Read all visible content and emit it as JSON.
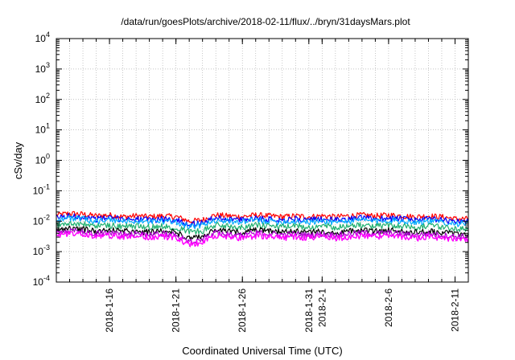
{
  "chart_data": {
    "type": "line",
    "title": "/data/run/goesPlots/archive/2018-02-11/flux/../bryn/31daysMars.plot",
    "xlabel": "Coordinated Universal Time (UTC)",
    "ylabel": "cSv/day",
    "y_scale": "log",
    "ylim": [
      0.0001,
      10000
    ],
    "y_ticks": [
      {
        "base": "10",
        "exp": "-4",
        "value": 0.0001
      },
      {
        "base": "10",
        "exp": "-3",
        "value": 0.001
      },
      {
        "base": "10",
        "exp": "-2",
        "value": 0.01
      },
      {
        "base": "10",
        "exp": "-1",
        "value": 0.1
      },
      {
        "base": "10",
        "exp": "0",
        "value": 1
      },
      {
        "base": "10",
        "exp": "1",
        "value": 10
      },
      {
        "base": "10",
        "exp": "2",
        "value": 100
      },
      {
        "base": "10",
        "exp": "3",
        "value": 1000
      },
      {
        "base": "10",
        "exp": "4",
        "value": 10000
      }
    ],
    "xlim": [
      "2018-01-12",
      "2018-02-12"
    ],
    "x_ticks": [
      {
        "date": "2018-01-16",
        "label": "2018-1-16"
      },
      {
        "date": "2018-01-21",
        "label": "2018-1-21"
      },
      {
        "date": "2018-01-26",
        "label": "2018-1-26"
      },
      {
        "date": "2018-01-31",
        "label": "2018-1-31"
      },
      {
        "date": "2018-02-01",
        "label": "2018-2-1"
      },
      {
        "date": "2018-02-06",
        "label": "2018-2-6"
      },
      {
        "date": "2018-02-11",
        "label": "2018-2-11"
      }
    ],
    "grid": true,
    "x": [
      "2018-01-12",
      "2018-01-13",
      "2018-01-14",
      "2018-01-15",
      "2018-01-16",
      "2018-01-17",
      "2018-01-18",
      "2018-01-19",
      "2018-01-20",
      "2018-01-21",
      "2018-01-22",
      "2018-01-23",
      "2018-01-24",
      "2018-01-25",
      "2018-01-26",
      "2018-01-27",
      "2018-01-28",
      "2018-01-29",
      "2018-01-30",
      "2018-01-31",
      "2018-02-01",
      "2018-02-02",
      "2018-02-03",
      "2018-02-04",
      "2018-02-05",
      "2018-02-06",
      "2018-02-07",
      "2018-02-08",
      "2018-02-09",
      "2018-02-10",
      "2018-02-11",
      "2018-02-12"
    ],
    "series": [
      {
        "color": "#ff0000",
        "values": [
          0.016,
          0.018,
          0.017,
          0.015,
          0.016,
          0.014,
          0.015,
          0.014,
          0.015,
          0.014,
          0.01,
          0.011,
          0.016,
          0.015,
          0.014,
          0.016,
          0.015,
          0.014,
          0.015,
          0.014,
          0.015,
          0.014,
          0.015,
          0.016,
          0.015,
          0.016,
          0.015,
          0.014,
          0.015,
          0.014,
          0.012,
          0.012
        ]
      },
      {
        "color": "#0000ff",
        "values": [
          0.013,
          0.015,
          0.014,
          0.012,
          0.013,
          0.012,
          0.012,
          0.011,
          0.012,
          0.011,
          0.008,
          0.009,
          0.013,
          0.012,
          0.011,
          0.013,
          0.012,
          0.011,
          0.012,
          0.011,
          0.012,
          0.011,
          0.012,
          0.013,
          0.012,
          0.013,
          0.012,
          0.011,
          0.012,
          0.011,
          0.01,
          0.01
        ]
      },
      {
        "color": "#00aaff",
        "values": [
          0.011,
          0.013,
          0.012,
          0.01,
          0.011,
          0.01,
          0.01,
          0.0095,
          0.01,
          0.0095,
          0.0068,
          0.0075,
          0.011,
          0.01,
          0.0095,
          0.011,
          0.01,
          0.0095,
          0.01,
          0.0095,
          0.01,
          0.0095,
          0.01,
          0.011,
          0.01,
          0.011,
          0.01,
          0.0095,
          0.01,
          0.0095,
          0.0085,
          0.0085
        ]
      },
      {
        "color": "#20b070",
        "values": [
          0.0075,
          0.0085,
          0.008,
          0.007,
          0.0075,
          0.0068,
          0.007,
          0.0065,
          0.007,
          0.0065,
          0.0045,
          0.005,
          0.0075,
          0.007,
          0.0065,
          0.0075,
          0.007,
          0.0065,
          0.007,
          0.0065,
          0.007,
          0.0065,
          0.007,
          0.0075,
          0.007,
          0.0075,
          0.007,
          0.0065,
          0.007,
          0.0065,
          0.0058,
          0.0058
        ]
      },
      {
        "color": "#000000",
        "values": [
          0.005,
          0.006,
          0.0055,
          0.0048,
          0.0052,
          0.0047,
          0.0049,
          0.0044,
          0.0048,
          0.0044,
          0.0027,
          0.0032,
          0.0051,
          0.0047,
          0.0043,
          0.0051,
          0.0048,
          0.0044,
          0.0047,
          0.0043,
          0.0047,
          0.0043,
          0.0047,
          0.0051,
          0.0048,
          0.0051,
          0.0047,
          0.0043,
          0.0047,
          0.0043,
          0.0039,
          0.0039
        ]
      },
      {
        "color": "#aa00cc",
        "values": [
          0.0042,
          0.005,
          0.0046,
          0.004,
          0.0043,
          0.0039,
          0.0041,
          0.0036,
          0.004,
          0.0036,
          0.0022,
          0.0026,
          0.0042,
          0.0039,
          0.0035,
          0.0042,
          0.004,
          0.0036,
          0.0039,
          0.0035,
          0.0039,
          0.0035,
          0.0039,
          0.0042,
          0.004,
          0.0042,
          0.0039,
          0.0035,
          0.0039,
          0.0035,
          0.0032,
          0.0032
        ]
      },
      {
        "color": "#ff00ff",
        "values": [
          0.0034,
          0.004,
          0.0037,
          0.0032,
          0.0035,
          0.0031,
          0.0033,
          0.0029,
          0.0032,
          0.0029,
          0.0017,
          0.002,
          0.0034,
          0.0031,
          0.0028,
          0.0034,
          0.0032,
          0.0029,
          0.0031,
          0.0028,
          0.0031,
          0.0028,
          0.0031,
          0.0034,
          0.0032,
          0.0034,
          0.0031,
          0.0028,
          0.0031,
          0.0028,
          0.0026,
          0.0026
        ]
      }
    ]
  }
}
